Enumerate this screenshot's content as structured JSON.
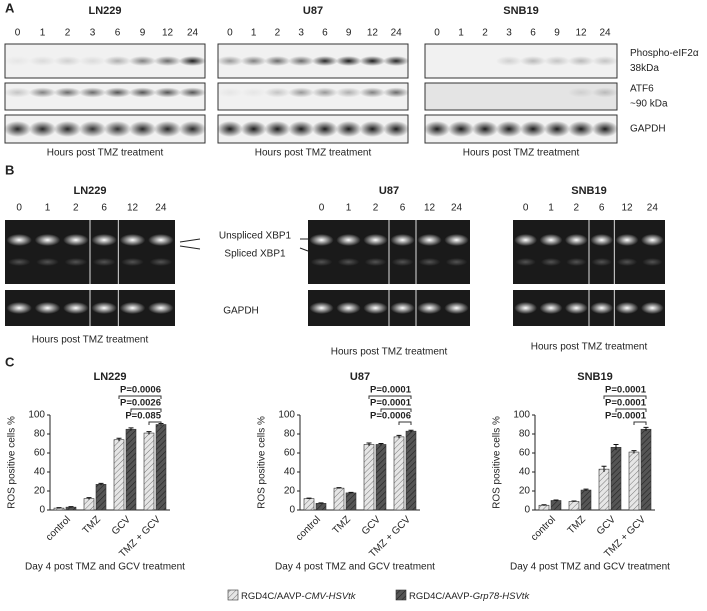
{
  "panel_a": {
    "label": "A",
    "blots": [
      {
        "name": "LN229",
        "hours": [
          0,
          1,
          2,
          3,
          6,
          9,
          12,
          24
        ],
        "xlabel": "Hours post TMZ treatment"
      },
      {
        "name": "U87",
        "hours": [
          0,
          1,
          2,
          3,
          6,
          9,
          12,
          24
        ],
        "xlabel": "Hours post TMZ treatment"
      },
      {
        "name": "SNB19",
        "hours": [
          0,
          1,
          2,
          3,
          6,
          9,
          12,
          24
        ],
        "xlabel": "Hours post TMZ treatment"
      }
    ],
    "rows": [
      [
        "Phospho-eIF2α",
        "38kDa"
      ],
      [
        "ATF6",
        "~90 kDa"
      ],
      [
        "GAPDH"
      ]
    ]
  },
  "panel_b": {
    "label": "B",
    "gels": [
      {
        "name": "LN229",
        "hours": [
          0,
          1,
          2,
          6,
          12,
          24
        ],
        "xlabel": "Hours post TMZ treatment"
      },
      {
        "name": "U87",
        "hours": [
          0,
          1,
          2,
          6,
          12,
          24
        ],
        "xlabel": "Hours post TMZ treatment"
      },
      {
        "name": "SNB19",
        "hours": [
          0,
          1,
          2,
          6,
          12,
          24
        ],
        "xlabel": "Hours post TMZ treatment"
      }
    ],
    "bands": [
      "Unspliced XBP1",
      "Spliced XBP1"
    ],
    "control": "GAPDH"
  },
  "panel_c": {
    "label": "C"
  },
  "chart_data": [
    {
      "type": "bar",
      "title": "LN229",
      "ylabel": "ROS positive cells %",
      "xlabel": "Day 4 post TMZ and GCV treatment",
      "categories": [
        "control",
        "TMZ",
        "GCV",
        "TMZ + GCV"
      ],
      "series": [
        {
          "color": "#e6e6e6",
          "values": [
            2,
            12,
            74,
            81
          ],
          "errors": [
            0.5,
            1,
            1.5,
            1.5
          ]
        },
        {
          "color": "#555555",
          "values": [
            3,
            27,
            85,
            90
          ],
          "errors": [
            0.5,
            1,
            1.5,
            1
          ]
        }
      ],
      "ylim": [
        0,
        100
      ],
      "yticks": [
        0,
        20,
        40,
        60,
        80,
        100
      ],
      "annotations": [
        "P=0.0006",
        "P=0.0026",
        "P=0.085"
      ]
    },
    {
      "type": "bar",
      "title": "U87",
      "ylabel": "ROS positive cells %",
      "xlabel": "Day 4 post TMZ and GCV treatment",
      "categories": [
        "control",
        "TMZ",
        "GCV",
        "TMZ + GCV"
      ],
      "series": [
        {
          "color": "#e6e6e6",
          "values": [
            12,
            23,
            69,
            77
          ],
          "errors": [
            0.5,
            0.5,
            1.5,
            1.5
          ]
        },
        {
          "color": "#555555",
          "values": [
            7,
            18,
            69,
            83
          ],
          "errors": [
            0.5,
            0.5,
            1,
            1
          ]
        }
      ],
      "ylim": [
        0,
        100
      ],
      "yticks": [
        0,
        20,
        40,
        60,
        80,
        100
      ],
      "annotations": [
        "P=0.0001",
        "P=0.0001",
        "P=0.0006"
      ]
    },
    {
      "type": "bar",
      "title": "SNB19",
      "ylabel": "ROS positive cells %",
      "xlabel": "Day 4 post TMZ and GCV treatment",
      "categories": [
        "control",
        "TMZ",
        "GCV",
        "TMZ + GCV"
      ],
      "series": [
        {
          "color": "#e6e6e6",
          "values": [
            5,
            9,
            43,
            61
          ],
          "errors": [
            0.5,
            0.5,
            3,
            1.5
          ]
        },
        {
          "color": "#555555",
          "values": [
            10,
            21,
            66,
            85
          ],
          "errors": [
            0.5,
            1,
            3,
            2
          ]
        }
      ],
      "ylim": [
        0,
        100
      ],
      "yticks": [
        0,
        20,
        40,
        60,
        80,
        100
      ],
      "annotations": [
        "P=0.0001",
        "P=0.0001",
        "P=0.0001"
      ]
    }
  ],
  "legend": [
    {
      "prefix": "RGD4C/AAVP-",
      "italic": "CMV-HSVtk"
    },
    {
      "prefix": "RGD4C/AAVP-",
      "italic": "Grp78-HSVtk"
    }
  ]
}
